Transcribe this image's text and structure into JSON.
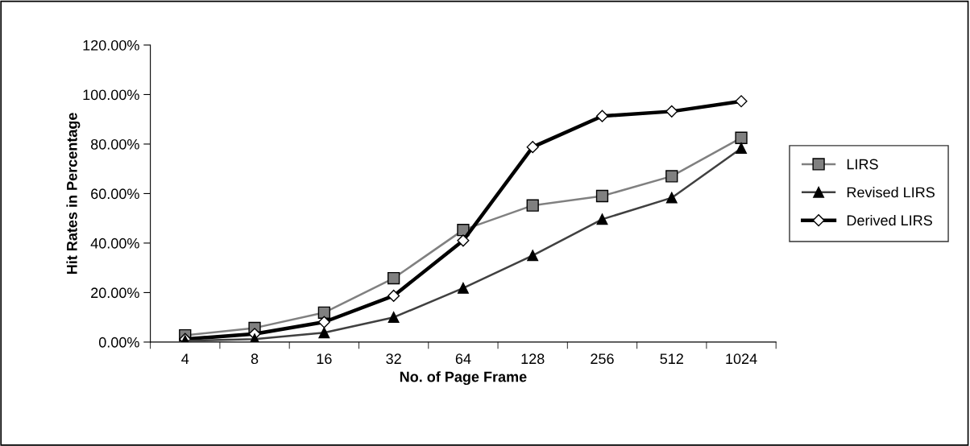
{
  "chart_data": {
    "type": "line",
    "xlabel": "No. of Page Frame",
    "ylabel": "Hit Rates in Percentage",
    "categories": [
      "4",
      "8",
      "16",
      "32",
      "64",
      "128",
      "256",
      "512",
      "1024"
    ],
    "series": [
      {
        "name": "LIRS",
        "color": "#808080",
        "marker": "square",
        "values": [
          2.7,
          5.7,
          11.9,
          25.8,
          45.3,
          55.2,
          59.0,
          67.0,
          82.5
        ]
      },
      {
        "name": "Revised LIRS",
        "color": "#404040",
        "marker": "triangle",
        "values": [
          0.5,
          1.2,
          3.8,
          10.0,
          21.8,
          35.0,
          49.6,
          58.3,
          78.3
        ]
      },
      {
        "name": "Derived LIRS",
        "color": "#000000",
        "marker": "diamond",
        "values": [
          1.2,
          3.3,
          8.1,
          18.7,
          41.0,
          78.8,
          91.3,
          93.2,
          97.3
        ]
      }
    ],
    "ylim": [
      0,
      120
    ],
    "yticks": [
      {
        "value": 0,
        "label": "0.00%"
      },
      {
        "value": 20,
        "label": "20.00%"
      },
      {
        "value": 40,
        "label": "40.00%"
      },
      {
        "value": 60,
        "label": "60.00%"
      },
      {
        "value": 80,
        "label": "80.00%"
      },
      {
        "value": 100,
        "label": "100.00%"
      },
      {
        "value": 120,
        "label": "120.00%"
      }
    ],
    "grid": false,
    "legend": "right",
    "line_style": "solid"
  }
}
